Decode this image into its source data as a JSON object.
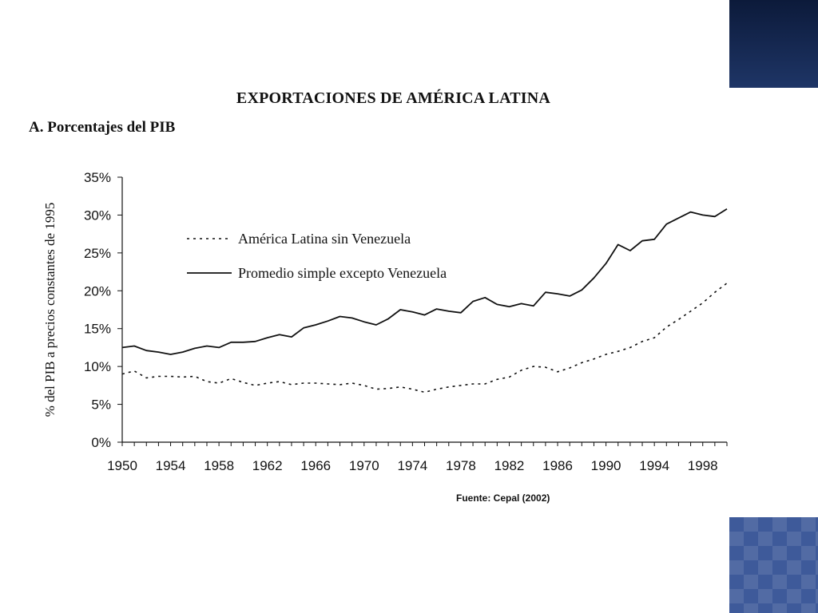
{
  "slide": {
    "title": "EXPORTACIONES DE AMÉRICA LATINA",
    "subtitle": "A. Porcentajes del PIB",
    "source": "Fuente: Cepal (2002)",
    "accent_color": "#1e3566"
  },
  "chart_data": {
    "type": "line",
    "title": "EXPORTACIONES DE AMÉRICA LATINA",
    "subtitle": "A. Porcentajes del PIB",
    "xlabel": "",
    "ylabel": "% del PIB a precios constantes de 1995",
    "xlim": [
      1950,
      2000
    ],
    "ylim": [
      0,
      35
    ],
    "x_ticks": [
      "1950",
      "1954",
      "1958",
      "1962",
      "1966",
      "1970",
      "1974",
      "1978",
      "1982",
      "1986",
      "1990",
      "1994",
      "1998"
    ],
    "y_ticks": [
      "0%",
      "5%",
      "10%",
      "15%",
      "20%",
      "25%",
      "30%",
      "35%"
    ],
    "grid": false,
    "legend_position": "top-left",
    "series": [
      {
        "name": "América Latina sin Venezuela",
        "style": "dashed",
        "color": "#111111",
        "x": [
          1950,
          1951,
          1952,
          1953,
          1954,
          1955,
          1956,
          1957,
          1958,
          1959,
          1960,
          1961,
          1962,
          1963,
          1964,
          1965,
          1966,
          1967,
          1968,
          1969,
          1970,
          1971,
          1972,
          1973,
          1974,
          1975,
          1976,
          1977,
          1978,
          1979,
          1980,
          1981,
          1982,
          1983,
          1984,
          1985,
          1986,
          1987,
          1988,
          1989,
          1990,
          1991,
          1992,
          1993,
          1994,
          1995,
          1996,
          1997,
          1998,
          1999,
          2000
        ],
        "values": [
          9.0,
          9.4,
          8.5,
          8.7,
          8.7,
          8.6,
          8.7,
          8.0,
          7.8,
          8.4,
          7.9,
          7.5,
          7.8,
          8.0,
          7.6,
          7.8,
          7.8,
          7.7,
          7.6,
          7.8,
          7.5,
          7.0,
          7.1,
          7.3,
          7.0,
          6.6,
          7.0,
          7.3,
          7.5,
          7.7,
          7.7,
          8.3,
          8.6,
          9.5,
          10.0,
          9.9,
          9.3,
          9.8,
          10.5,
          11.0,
          11.6,
          12.0,
          12.5,
          13.3,
          13.8,
          15.2,
          16.2,
          17.3,
          18.4,
          19.8,
          21.0
        ]
      },
      {
        "name": "Promedio simple excepto Venezuela",
        "style": "solid",
        "color": "#111111",
        "x": [
          1950,
          1951,
          1952,
          1953,
          1954,
          1955,
          1956,
          1957,
          1958,
          1959,
          1960,
          1961,
          1962,
          1963,
          1964,
          1965,
          1966,
          1967,
          1968,
          1969,
          1970,
          1971,
          1972,
          1973,
          1974,
          1975,
          1976,
          1977,
          1978,
          1979,
          1980,
          1981,
          1982,
          1983,
          1984,
          1985,
          1986,
          1987,
          1988,
          1989,
          1990,
          1991,
          1992,
          1993,
          1994,
          1995,
          1996,
          1997,
          1998,
          1999,
          2000
        ],
        "values": [
          12.5,
          12.7,
          12.1,
          11.9,
          11.6,
          11.9,
          12.4,
          12.7,
          12.5,
          13.2,
          13.2,
          13.3,
          13.8,
          14.2,
          13.9,
          15.1,
          15.5,
          16.0,
          16.6,
          16.4,
          15.9,
          15.5,
          16.3,
          17.5,
          17.2,
          16.8,
          17.6,
          17.3,
          17.1,
          18.6,
          19.1,
          18.2,
          17.9,
          18.3,
          18.0,
          19.8,
          19.6,
          19.3,
          20.1,
          21.7,
          23.6,
          26.1,
          25.3,
          26.6,
          26.8,
          28.8,
          29.6,
          30.4,
          30.0,
          29.8,
          30.8
        ]
      }
    ]
  }
}
